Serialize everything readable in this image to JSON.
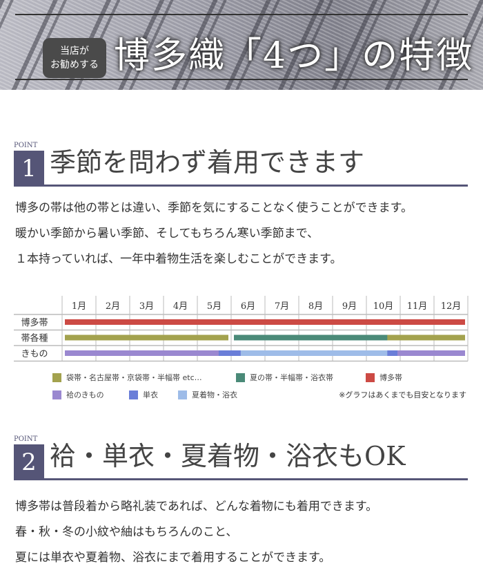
{
  "banner": {
    "badge_line1": "当店が",
    "badge_line2": "お勧めする",
    "title": "博多織「4つ」の特徴"
  },
  "point1": {
    "label": "POINT",
    "number": "1",
    "title": "季節を問わず着用できます",
    "paragraphs": [
      "博多の帯は他の帯とは違い、季節を気にすることなく使うことができます。",
      "暖かい季節から暑い季節、そしてもちろん寒い季節まで、",
      "１本持っていれば、一年中着物生活を楽しむことができます。"
    ]
  },
  "point2": {
    "label": "POINT",
    "number": "2",
    "title": "袷・単衣・夏着物・浴衣もOK",
    "paragraphs": [
      "博多帯は普段着から略礼装であれば、どんな着物にも着用できます。",
      "春・秋・冬の小紋や紬はもちろんのこと、",
      "夏には単衣や夏着物、浴衣にまで着用することができます。"
    ]
  },
  "chart_data": {
    "type": "table",
    "categories": [
      "1月",
      "2月",
      "3月",
      "4月",
      "5月",
      "6月",
      "7月",
      "8月",
      "9月",
      "10月",
      "11月",
      "12月"
    ],
    "rows": [
      "博多帯",
      "帯各種",
      "きもの"
    ],
    "series": [
      {
        "name": "博多帯",
        "row": 0,
        "color": "#cc4a44",
        "spans": [
          [
            1,
            12
          ]
        ]
      },
      {
        "name": "袋帯・名古屋帯・京袋帯・半幅帯 etc…",
        "row": 1,
        "color": "#a3a24e",
        "spans": [
          [
            1,
            5
          ],
          [
            9.8,
            12
          ]
        ]
      },
      {
        "name": "夏の帯・半幅帯・浴衣帯",
        "row": 1,
        "color": "#4a8a78",
        "spans": [
          [
            6,
            9.7
          ]
        ]
      },
      {
        "name": "袷のきもの",
        "row": 2,
        "color": "#9a88d0",
        "spans": [
          [
            1,
            5.45
          ],
          [
            10,
            12
          ]
        ]
      },
      {
        "name": "単衣",
        "row": 2,
        "color": "#6a7ed8",
        "spans": [
          [
            5.55,
            10
          ]
        ]
      },
      {
        "name": "夏着物・浴衣",
        "row": 2,
        "color": "#9ebce8",
        "spans": [
          [
            6.2,
            9.7
          ]
        ]
      }
    ],
    "legend_order": [
      2,
      5,
      0,
      3,
      4,
      5
    ],
    "note": "※グラフはあくまでも目安となります"
  }
}
